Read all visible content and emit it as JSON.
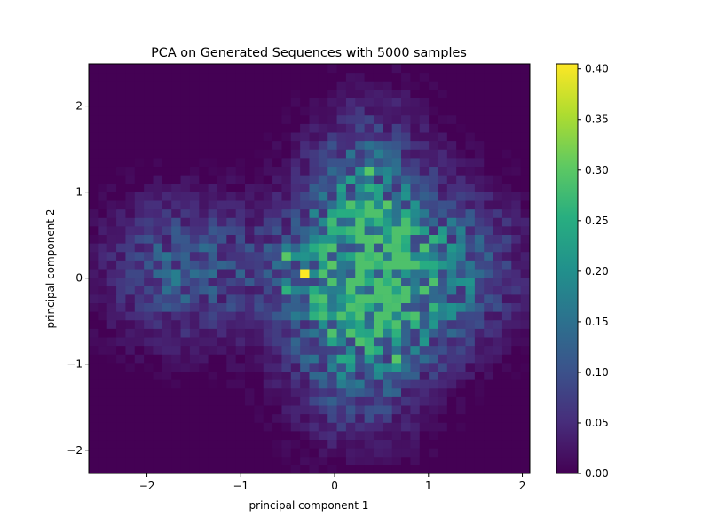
{
  "chart_data": {
    "type": "heatmap",
    "title": "PCA on Generated Sequences with 5000 samples",
    "xlabel": "principal component 1",
    "ylabel": "principal component 2",
    "xlim": [
      -2.62,
      2.08
    ],
    "ylim": [
      -2.27,
      2.49
    ],
    "bins": [
      48,
      48
    ],
    "x_ticks": [
      -2,
      -1,
      0,
      1,
      2
    ],
    "x_tick_labels": [
      "−2",
      "−1",
      "0",
      "1",
      "2"
    ],
    "y_ticks": [
      -2,
      -1,
      0,
      1,
      2
    ],
    "y_tick_labels": [
      "−2",
      "−1",
      "0",
      "1",
      "2"
    ],
    "colorbar": {
      "range": [
        0.0,
        0.405
      ],
      "ticks": [
        0.0,
        0.05,
        0.1,
        0.15,
        0.2,
        0.25,
        0.3,
        0.35,
        0.4
      ],
      "tick_labels": [
        "0.00",
        "0.05",
        "0.10",
        "0.15",
        "0.20",
        "0.25",
        "0.30",
        "0.35",
        "0.40"
      ],
      "colormap": "viridis"
    },
    "density_model": {
      "description": "approximate density estimated from the image",
      "blobs": [
        {
          "cx": 0.35,
          "cy": 0.6,
          "sx": 0.45,
          "sy": 0.8,
          "w": 0.2
        },
        {
          "cx": 0.25,
          "cy": -0.7,
          "sx": 0.5,
          "sy": 0.7,
          "w": 0.16
        },
        {
          "cx": -1.6,
          "cy": 0.1,
          "sx": 0.55,
          "sy": 0.55,
          "w": 0.12
        },
        {
          "cx": 1.3,
          "cy": 0.15,
          "sx": 0.5,
          "sy": 0.6,
          "w": 0.11
        },
        {
          "cx": -0.3,
          "cy": 0.1,
          "sx": 0.4,
          "sy": 0.4,
          "w": 0.08
        },
        {
          "cx": 0.8,
          "cy": -0.2,
          "sx": 0.5,
          "sy": 0.5,
          "w": 0.07
        }
      ],
      "hot_cells": [
        {
          "x": -0.3,
          "y": 0.05,
          "v": 0.405
        },
        {
          "x": -0.03,
          "y": 0.15,
          "v": 0.3
        },
        {
          "x": -0.55,
          "y": 0.25,
          "v": 0.3
        },
        {
          "x": 0.45,
          "y": 0.45,
          "v": 0.3
        },
        {
          "x": 0.35,
          "y": 1.25,
          "v": 0.3
        },
        {
          "x": 0.55,
          "y": 0.85,
          "v": 0.3
        },
        {
          "x": 0.65,
          "y": -0.98,
          "v": 0.3
        },
        {
          "x": 0.65,
          "y": -0.65,
          "v": 0.26
        },
        {
          "x": -0.5,
          "y": -0.1,
          "v": 0.26
        },
        {
          "x": 0.0,
          "y": 0.6,
          "v": 0.26
        },
        {
          "x": 0.25,
          "y": 0.75,
          "v": 0.26
        }
      ],
      "seed": 5000
    }
  }
}
